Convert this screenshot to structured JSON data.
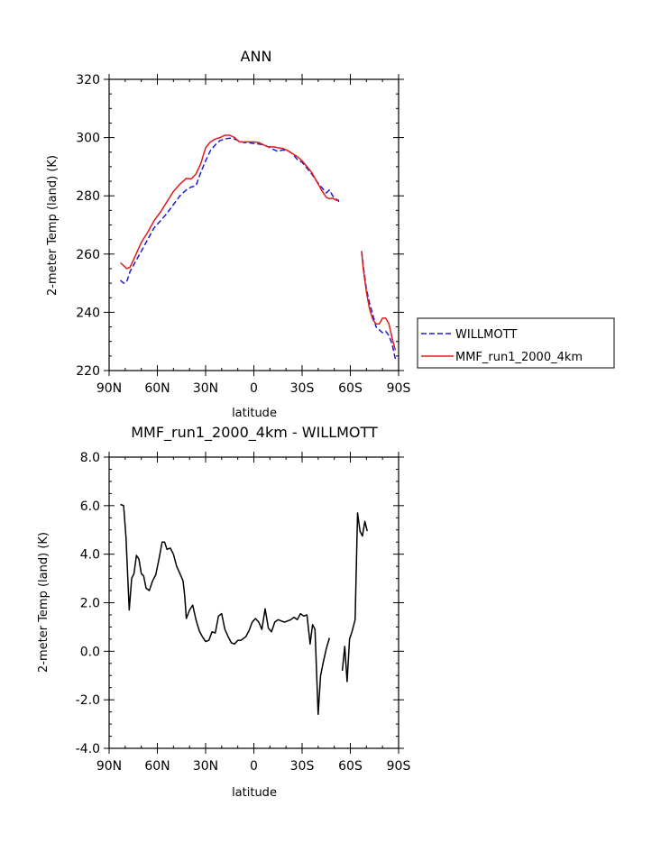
{
  "chart_data": [
    {
      "type": "line",
      "title": "ANN",
      "xlabel": "latitude",
      "ylabel": "2-meter Temp (land) (K)",
      "xlim": [
        90,
        -90
      ],
      "ylim": [
        220,
        320
      ],
      "x_ticks": [
        90,
        60,
        30,
        0,
        -30,
        -60,
        -90
      ],
      "x_tick_labels": [
        "90N",
        "60N",
        "30N",
        "0",
        "30S",
        "60S",
        "90S"
      ],
      "y_ticks": [
        220,
        240,
        260,
        280,
        300,
        320
      ],
      "y_tick_labels": [
        "220",
        "240",
        "260",
        "280",
        "300",
        "320"
      ],
      "grid": false,
      "legend_position": "right",
      "legend": [
        "WILLMOTT",
        "MMF_run1_2000_4km"
      ],
      "series": [
        {
          "name": "WILLMOTT",
          "color": "#1a1ad4",
          "dash": "dashed",
          "segments": [
            [
              [
                83,
                251
              ],
              [
                81,
                250
              ],
              [
                79,
                250.5
              ],
              [
                77,
                254
              ],
              [
                74,
                257
              ],
              [
                70,
                261
              ],
              [
                66,
                265
              ],
              [
                62,
                269
              ],
              [
                58,
                271.5
              ],
              [
                54,
                274
              ],
              [
                50,
                277
              ],
              [
                46,
                280
              ],
              [
                42,
                282
              ],
              [
                39,
                283
              ],
              [
                36,
                283.5
              ],
              [
                33,
                288
              ],
              [
                30,
                292
              ],
              [
                27,
                295.5
              ],
              [
                24,
                297.5
              ],
              [
                21,
                299
              ],
              [
                18,
                299.5
              ],
              [
                15,
                299.8
              ],
              [
                12,
                299.5
              ],
              [
                9,
                298.8
              ],
              [
                6,
                298.3
              ],
              [
                3,
                298.2
              ],
              [
                0,
                298
              ],
              [
                -3,
                297.8
              ],
              [
                -6,
                297.5
              ],
              [
                -9,
                296.8
              ],
              [
                -12,
                296
              ],
              [
                -15,
                295.2
              ],
              [
                -18,
                295.8
              ],
              [
                -21,
                295.5
              ],
              [
                -24,
                294.5
              ],
              [
                -27,
                292.5
              ],
              [
                -30,
                291.5
              ],
              [
                -33,
                289.5
              ],
              [
                -36,
                287.5
              ],
              [
                -39,
                285
              ],
              [
                -42,
                283
              ],
              [
                -45,
                281
              ],
              [
                -47,
                282
              ],
              [
                -49,
                280
              ],
              [
                -51,
                279
              ],
              [
                -53,
                278
              ]
            ],
            [
              [
                -67,
                261
              ],
              [
                -68,
                256
              ],
              [
                -70,
                248
              ],
              [
                -72,
                243
              ],
              [
                -74,
                239
              ],
              [
                -76,
                235
              ],
              [
                -78,
                234
              ],
              [
                -80,
                233
              ],
              [
                -82,
                233.5
              ],
              [
                -84,
                232
              ],
              [
                -86,
                229
              ],
              [
                -88,
                224
              ]
            ]
          ]
        },
        {
          "name": "MMF_run1_2000_4km",
          "color": "#e01a1a",
          "dash": "solid",
          "segments": [
            [
              [
                83,
                257
              ],
              [
                81,
                256
              ],
              [
                79,
                255
              ],
              [
                77,
                255.5
              ],
              [
                74,
                259
              ],
              [
                70,
                264
              ],
              [
                66,
                267.5
              ],
              [
                62,
                271.5
              ],
              [
                58,
                274.5
              ],
              [
                54,
                278
              ],
              [
                50,
                281.5
              ],
              [
                46,
                284
              ],
              [
                42,
                286
              ],
              [
                39,
                285.8
              ],
              [
                36,
                287.5
              ],
              [
                33,
                291
              ],
              [
                30,
                296.5
              ],
              [
                27,
                298.5
              ],
              [
                24,
                299.5
              ],
              [
                21,
                300
              ],
              [
                18,
                300.8
              ],
              [
                15,
                300.8
              ],
              [
                12,
                300
              ],
              [
                9,
                298.5
              ],
              [
                6,
                298.5
              ],
              [
                3,
                298.5
              ],
              [
                0,
                298.5
              ],
              [
                -3,
                298.3
              ],
              [
                -6,
                297.5
              ],
              [
                -9,
                296.8
              ],
              [
                -12,
                296.8
              ],
              [
                -15,
                296.5
              ],
              [
                -18,
                296.3
              ],
              [
                -21,
                295.5
              ],
              [
                -24,
                294.5
              ],
              [
                -27,
                293.5
              ],
              [
                -30,
                292
              ],
              [
                -33,
                290
              ],
              [
                -36,
                288
              ],
              [
                -39,
                285
              ],
              [
                -42,
                282
              ],
              [
                -45,
                279.5
              ],
              [
                -47,
                279
              ],
              [
                -49,
                279.2
              ],
              [
                -51,
                278.5
              ],
              [
                -53,
                278.5
              ]
            ],
            [
              [
                -67,
                261
              ],
              [
                -68,
                255
              ],
              [
                -70,
                247
              ],
              [
                -72,
                241
              ],
              [
                -74,
                237.5
              ],
              [
                -76,
                236
              ],
              [
                -78,
                236
              ],
              [
                -80,
                238
              ],
              [
                -82,
                238
              ],
              [
                -84,
                236
              ],
              [
                -86,
                231
              ],
              [
                -88,
                227
              ]
            ]
          ]
        }
      ]
    },
    {
      "type": "line",
      "title": "MMF_run1_2000_4km - WILLMOTT",
      "xlabel": "latitude",
      "ylabel": "2-meter Temp (land) (K)",
      "xlim": [
        90,
        -90
      ],
      "ylim": [
        -4.0,
        8.0
      ],
      "x_ticks": [
        90,
        60,
        30,
        0,
        -30,
        -60,
        -90
      ],
      "x_tick_labels": [
        "90N",
        "60N",
        "30N",
        "0",
        "30S",
        "60S",
        "90S"
      ],
      "y_ticks": [
        -4,
        -2,
        0,
        2,
        4,
        6,
        8
      ],
      "y_tick_labels": [
        "-4.0",
        "-2.0",
        "0.0",
        "2.0",
        "4.0",
        "6.0",
        "8.0"
      ],
      "grid": false,
      "series": [
        {
          "color": "#000000",
          "dash": "solid",
          "segments": [
            [
              [
                83,
                6.05
              ],
              [
                81,
                6.0
              ],
              [
                79.5,
                4.7
              ],
              [
                77.5,
                1.7
              ],
              [
                76,
                3.0
              ],
              [
                74.5,
                3.2
              ],
              [
                73,
                3.95
              ],
              [
                71.5,
                3.8
              ],
              [
                70,
                3.2
              ],
              [
                68.5,
                3.1
              ],
              [
                67,
                2.6
              ],
              [
                65,
                2.5
              ],
              [
                63,
                2.9
              ],
              [
                61,
                3.15
              ],
              [
                59,
                3.8
              ],
              [
                57,
                4.5
              ],
              [
                55.5,
                4.5
              ],
              [
                54,
                4.2
              ],
              [
                52,
                4.25
              ],
              [
                50,
                4.0
              ],
              [
                48,
                3.5
              ],
              [
                46,
                3.2
              ],
              [
                44,
                2.9
              ],
              [
                43,
                2.3
              ],
              [
                42,
                1.35
              ],
              [
                40,
                1.7
              ],
              [
                38,
                1.9
              ],
              [
                36,
                1.3
              ],
              [
                34,
                0.85
              ],
              [
                32,
                0.6
              ],
              [
                30,
                0.4
              ],
              [
                28,
                0.45
              ],
              [
                26,
                0.8
              ],
              [
                24,
                0.75
              ],
              [
                22,
                1.45
              ],
              [
                20,
                1.55
              ],
              [
                18,
                0.9
              ],
              [
                16,
                0.6
              ],
              [
                14,
                0.35
              ],
              [
                12,
                0.3
              ],
              [
                10,
                0.45
              ],
              [
                8,
                0.45
              ],
              [
                5,
                0.6
              ],
              [
                3,
                0.85
              ],
              [
                1,
                1.2
              ],
              [
                -1,
                1.35
              ],
              [
                -3,
                1.2
              ],
              [
                -5,
                0.9
              ],
              [
                -7,
                1.75
              ],
              [
                -9,
                0.95
              ],
              [
                -11,
                0.8
              ],
              [
                -13,
                1.2
              ],
              [
                -15,
                1.3
              ],
              [
                -17,
                1.25
              ],
              [
                -19,
                1.2
              ],
              [
                -21,
                1.25
              ],
              [
                -23,
                1.3
              ],
              [
                -25,
                1.4
              ],
              [
                -27,
                1.3
              ],
              [
                -29,
                1.55
              ],
              [
                -31,
                1.45
              ],
              [
                -33,
                1.5
              ],
              [
                -35,
                0.3
              ],
              [
                -36.5,
                1.1
              ],
              [
                -38,
                0.9
              ],
              [
                -40,
                -2.6
              ],
              [
                -41.5,
                -1.0
              ],
              [
                -43,
                -0.5
              ],
              [
                -45,
                0.1
              ],
              [
                -47,
                0.55
              ]
            ],
            [
              [
                -55,
                -0.8
              ],
              [
                -56.5,
                0.2
              ],
              [
                -58,
                -1.25
              ],
              [
                -59.5,
                0.5
              ],
              [
                -61,
                0.8
              ],
              [
                -63,
                1.3
              ],
              [
                -64.5,
                5.7
              ],
              [
                -66,
                4.95
              ],
              [
                -67.5,
                4.75
              ],
              [
                -69,
                5.35
              ],
              [
                -70.5,
                4.95
              ]
            ]
          ]
        }
      ]
    }
  ]
}
